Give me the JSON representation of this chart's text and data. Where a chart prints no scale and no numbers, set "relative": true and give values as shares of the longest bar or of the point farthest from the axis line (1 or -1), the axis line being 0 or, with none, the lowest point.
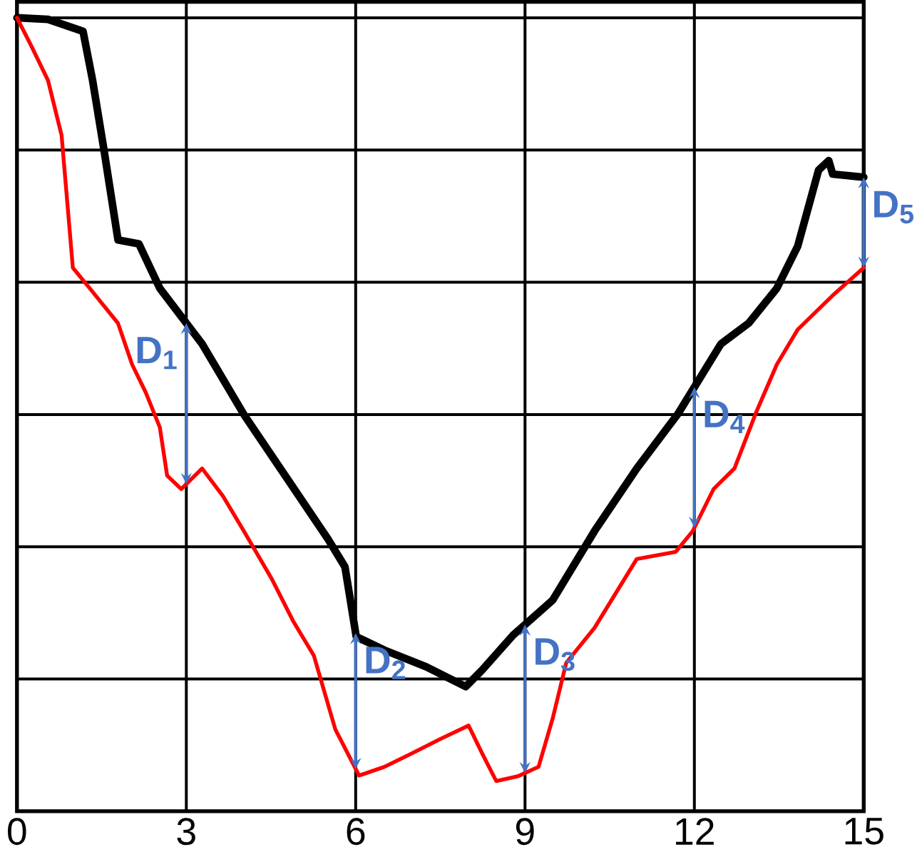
{
  "chart_data": {
    "type": "line",
    "relative": true,
    "xlim": [
      0,
      15
    ],
    "xticks": [
      0,
      3,
      6,
      9,
      12,
      15
    ],
    "grid": true,
    "tick_labels": "x",
    "marker": "none",
    "line_style": "solid",
    "series": [
      {
        "color": "#000000",
        "x": [
          0,
          0.55,
          1.17,
          1.34,
          1.54,
          1.79,
          2.16,
          2.53,
          3.28,
          4.02,
          4.77,
          5.51,
          5.81,
          5.89,
          6.01,
          6.51,
          7.25,
          7.95,
          8.24,
          8.79,
          9.49,
          10.23,
          10.98,
          11.72,
          12.47,
          12.96,
          13.46,
          13.83,
          14.2,
          14.38,
          14.45,
          15
        ],
        "values": [
          1.0,
          0.998,
          0.983,
          0.921,
          0.834,
          0.72,
          0.715,
          0.659,
          0.589,
          0.5,
          0.421,
          0.343,
          0.308,
          0.273,
          0.22,
          0.203,
          0.182,
          0.157,
          0.178,
          0.222,
          0.266,
          0.353,
          0.432,
          0.502,
          0.589,
          0.615,
          0.659,
          0.712,
          0.808,
          0.82,
          0.803,
          0.799
        ]
      },
      {
        "color": "#ff0000",
        "x": [
          0,
          0.25,
          0.55,
          0.79,
          0.99,
          1.29,
          1.79,
          2.04,
          2.28,
          2.53,
          2.66,
          2.91,
          3.28,
          3.65,
          4.02,
          4.52,
          4.89,
          5.26,
          5.64,
          6.06,
          6.51,
          7.0,
          7.5,
          8.0,
          8.24,
          8.49,
          8.87,
          9.24,
          9.49,
          9.73,
          10.23,
          10.98,
          11.67,
          11.97,
          12.34,
          12.71,
          13.09,
          13.46,
          13.83,
          14.45,
          15
        ],
        "values": [
          1.0,
          0.965,
          0.921,
          0.852,
          0.685,
          0.659,
          0.615,
          0.563,
          0.528,
          0.484,
          0.423,
          0.406,
          0.432,
          0.397,
          0.353,
          0.292,
          0.24,
          0.196,
          0.103,
          0.045,
          0.056,
          0.073,
          0.091,
          0.108,
          0.073,
          0.038,
          0.044,
          0.056,
          0.117,
          0.187,
          0.231,
          0.318,
          0.327,
          0.353,
          0.406,
          0.432,
          0.502,
          0.563,
          0.607,
          0.65,
          0.685
        ]
      }
    ],
    "annotations": [
      "D$_{1}$",
      "D$_{2}$",
      "D$_{3}$",
      "D$_{4}$",
      "D$_{5}$"
    ]
  }
}
